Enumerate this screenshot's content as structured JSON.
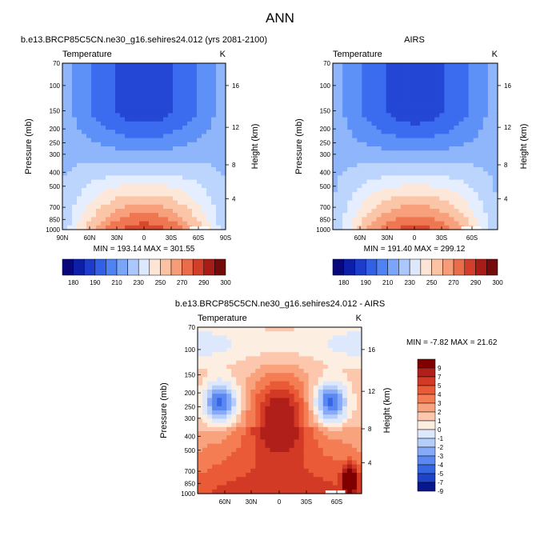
{
  "figure_title": "ANN",
  "chart_data": [
    {
      "type": "heatmap",
      "title": "b.e13.BRCP85C5CN.ne30_g16.sehires24.012 (yrs 2081-2100)",
      "field_label": "Temperature",
      "units": "K",
      "ylabel": "Pressure (mb)",
      "ylabel_right": "Height (km)",
      "yticks": [
        70,
        100,
        150,
        200,
        250,
        300,
        400,
        500,
        700,
        850,
        1000
      ],
      "yticks_right": [
        "16",
        "12",
        "8",
        "4"
      ],
      "xticks": [
        "90N",
        "60N",
        "30N",
        "0",
        "30S",
        "60S",
        "90S"
      ],
      "min_max_text": "MIN = 193.14  MAX = 301.55",
      "colorbar_levels": [
        "180",
        "190",
        "210",
        "230",
        "250",
        "270",
        "290",
        "300"
      ]
    },
    {
      "type": "heatmap",
      "title": "AIRS",
      "field_label": "Temperature",
      "units": "K",
      "ylabel": "Pressure (mb)",
      "ylabel_right": "Height (km)",
      "yticks": [
        70,
        100,
        150,
        200,
        250,
        300,
        400,
        500,
        700,
        850,
        1000
      ],
      "yticks_right": [
        "16",
        "12",
        "8",
        "4"
      ],
      "xticks": [
        "60N",
        "30N",
        "0",
        "30S",
        "60S"
      ],
      "min_max_text": "MIN = 191.40  MAX = 299.12",
      "colorbar_levels": [
        "180",
        "190",
        "210",
        "230",
        "250",
        "270",
        "290",
        "300"
      ]
    },
    {
      "type": "heatmap",
      "title": "b.e13.BRCP85C5CN.ne30_g16.sehires24.012 - AIRS",
      "field_label": "Temperature",
      "units": "K",
      "ylabel": "Pressure (mb)",
      "ylabel_right": "Height (km)",
      "yticks": [
        70,
        100,
        150,
        200,
        250,
        300,
        400,
        500,
        700,
        850,
        1000
      ],
      "yticks_right": [
        "16",
        "12",
        "8",
        "4"
      ],
      "xticks": [
        "60N",
        "30N",
        "0",
        "30S",
        "60S"
      ],
      "min_max_text": "MIN = -7.82  MAX = 21.62",
      "colorbar_levels": [
        "9",
        "7",
        "5",
        "4",
        "3",
        "2",
        "1",
        "0",
        "-1",
        "-2",
        "-3",
        "-4",
        "-5",
        "-7",
        "-9"
      ]
    }
  ],
  "palette": {
    "temp": [
      "#0b0f73",
      "#1a2ea6",
      "#2547d6",
      "#3b6cf0",
      "#5e91f7",
      "#8fb5fb",
      "#bcd5fd",
      "#e4eefe",
      "#fde7d9",
      "#fbc5a8",
      "#f7a07b",
      "#ee7651",
      "#d9472d",
      "#b01f1a",
      "#7a0d0d"
    ],
    "temp_bar": [
      "#08087a",
      "#0d1fa8",
      "#1e3ccc",
      "#3160e6",
      "#4f82f2",
      "#7ba5f8",
      "#abc7fb",
      "#dde8fd",
      "#fde4d5",
      "#fbc3a4",
      "#f69c78",
      "#ea6d4b",
      "#d13f2a",
      "#a81c18",
      "#730b0b"
    ],
    "diff_bar": [
      "#800000",
      "#b01f1a",
      "#d33a26",
      "#eb5a36",
      "#f57d54",
      "#f9a27e",
      "#fcc7ac",
      "#fdeee2",
      "#dde8fd",
      "#b5cdfb",
      "#86aaf7",
      "#5b88f0",
      "#3766e3",
      "#1f43c7",
      "#0a168c"
    ]
  }
}
